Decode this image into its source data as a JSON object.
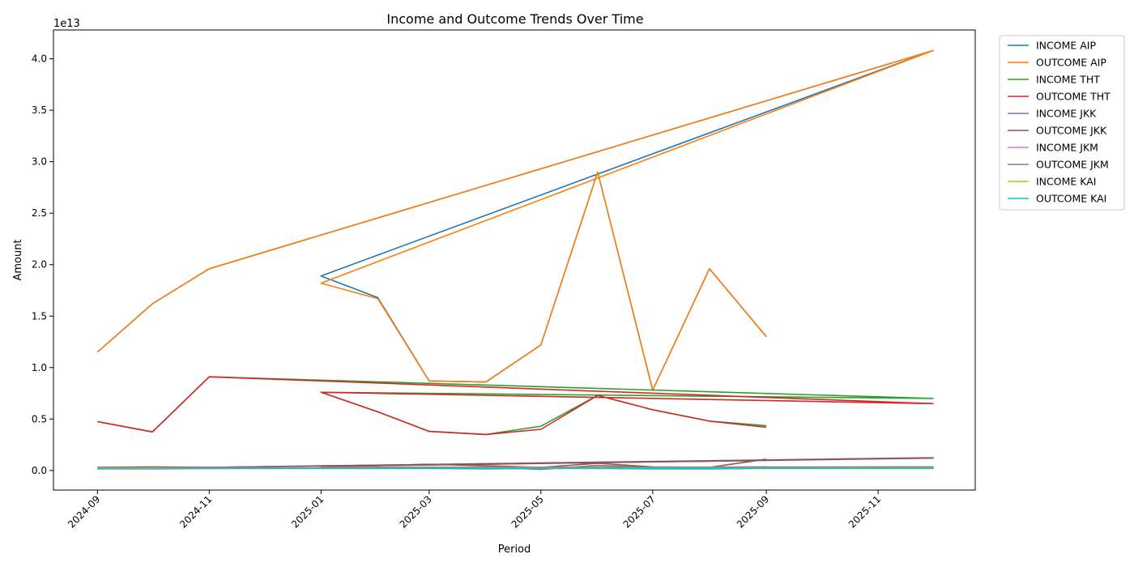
{
  "chart_data": {
    "type": "line",
    "title": "Income and Outcome Trends Over Time",
    "xlabel": "Period",
    "ylabel": "Amount",
    "y_scale_label": "1e13",
    "xlim": [
      "2024-08-08",
      "2025-12-24"
    ],
    "ylim": [
      -0.19,
      4.28
    ],
    "x_ticks": [
      "2024-09",
      "2024-11",
      "2025-01",
      "2025-03",
      "2025-05",
      "2025-07",
      "2025-09",
      "2025-11"
    ],
    "y_ticks": [
      "0.0",
      "0.5",
      "1.0",
      "1.5",
      "2.0",
      "2.5",
      "3.0",
      "3.5",
      "4.0"
    ],
    "legend_position": "outside-right-top",
    "grid": false,
    "series": [
      {
        "name": "INCOME AIP",
        "color": "#1f77b4",
        "points": [
          [
            "2024-09-01",
            1.15
          ],
          [
            "2024-10-01",
            1.62
          ],
          [
            "2024-11-01",
            1.96
          ],
          [
            "2025-12-01",
            4.08
          ],
          [
            "2025-01-01",
            1.89
          ],
          [
            "2025-02-01",
            1.68
          ],
          [
            "2025-03-01",
            0.87
          ],
          [
            "2025-04-01",
            0.86
          ],
          [
            "2025-05-01",
            1.22
          ],
          [
            "2025-06-01",
            2.9
          ],
          [
            "2025-07-01",
            0.78
          ],
          [
            "2025-08-01",
            1.96
          ],
          [
            "2025-09-01",
            1.3
          ]
        ]
      },
      {
        "name": "OUTCOME AIP",
        "color": "#ff7f0e",
        "points": [
          [
            "2024-09-01",
            1.15
          ],
          [
            "2024-10-01",
            1.62
          ],
          [
            "2024-11-01",
            1.96
          ],
          [
            "2025-12-01",
            4.08
          ],
          [
            "2025-01-01",
            1.82
          ],
          [
            "2025-02-01",
            1.67
          ],
          [
            "2025-03-01",
            0.87
          ],
          [
            "2025-04-01",
            0.86
          ],
          [
            "2025-05-01",
            1.22
          ],
          [
            "2025-06-01",
            2.9
          ],
          [
            "2025-07-01",
            0.78
          ],
          [
            "2025-08-01",
            1.96
          ],
          [
            "2025-09-01",
            1.3
          ]
        ]
      },
      {
        "name": "INCOME THT",
        "color": "#2ca02c",
        "points": [
          [
            "2024-09-01",
            0.475
          ],
          [
            "2024-10-01",
            0.375
          ],
          [
            "2024-11-01",
            0.91
          ],
          [
            "2025-12-01",
            0.7
          ],
          [
            "2025-01-01",
            0.76
          ],
          [
            "2025-02-01",
            0.57
          ],
          [
            "2025-03-01",
            0.38
          ],
          [
            "2025-04-01",
            0.35
          ],
          [
            "2025-05-01",
            0.43
          ],
          [
            "2025-06-01",
            0.73
          ],
          [
            "2025-07-01",
            0.59
          ],
          [
            "2025-08-01",
            0.48
          ],
          [
            "2025-09-01",
            0.435
          ]
        ]
      },
      {
        "name": "OUTCOME THT",
        "color": "#d62728",
        "points": [
          [
            "2024-09-01",
            0.475
          ],
          [
            "2024-10-01",
            0.375
          ],
          [
            "2024-11-01",
            0.91
          ],
          [
            "2025-12-01",
            0.65
          ],
          [
            "2025-01-01",
            0.76
          ],
          [
            "2025-02-01",
            0.57
          ],
          [
            "2025-03-01",
            0.38
          ],
          [
            "2025-04-01",
            0.35
          ],
          [
            "2025-05-01",
            0.4
          ],
          [
            "2025-06-01",
            0.73
          ],
          [
            "2025-07-01",
            0.59
          ],
          [
            "2025-08-01",
            0.48
          ],
          [
            "2025-09-01",
            0.42
          ]
        ]
      },
      {
        "name": "INCOME JKK",
        "color": "#9467bd",
        "points": [
          [
            "2024-09-01",
            0.03
          ],
          [
            "2024-10-01",
            0.03
          ],
          [
            "2024-11-01",
            0.03
          ],
          [
            "2025-12-01",
            0.125
          ],
          [
            "2025-01-01",
            0.04
          ],
          [
            "2025-02-01",
            0.05
          ],
          [
            "2025-03-01",
            0.055
          ],
          [
            "2025-04-01",
            0.06
          ],
          [
            "2025-05-01",
            0.07
          ],
          [
            "2025-06-01",
            0.075
          ],
          [
            "2025-07-01",
            0.085
          ],
          [
            "2025-08-01",
            0.09
          ],
          [
            "2025-09-01",
            0.1
          ]
        ]
      },
      {
        "name": "OUTCOME JKK",
        "color": "#8c564b",
        "points": [
          [
            "2024-09-01",
            0.03
          ],
          [
            "2024-10-01",
            0.035
          ],
          [
            "2024-11-01",
            0.03
          ],
          [
            "2025-12-01",
            0.12
          ],
          [
            "2025-01-01",
            0.04
          ],
          [
            "2025-02-01",
            0.045
          ],
          [
            "2025-03-01",
            0.06
          ],
          [
            "2025-04-01",
            0.045
          ],
          [
            "2025-05-01",
            0.03
          ],
          [
            "2025-06-01",
            0.07
          ],
          [
            "2025-07-01",
            0.035
          ],
          [
            "2025-08-01",
            0.03
          ],
          [
            "2025-09-01",
            0.11
          ]
        ]
      },
      {
        "name": "INCOME JKM",
        "color": "#e377c2",
        "points": [
          [
            "2024-09-01",
            0.025
          ],
          [
            "2024-10-01",
            0.025
          ],
          [
            "2024-11-01",
            0.025
          ],
          [
            "2025-12-01",
            0.035
          ],
          [
            "2025-01-01",
            0.03
          ],
          [
            "2025-02-01",
            0.03
          ],
          [
            "2025-03-01",
            0.03
          ],
          [
            "2025-04-01",
            0.03
          ],
          [
            "2025-05-01",
            0.03
          ],
          [
            "2025-06-01",
            0.035
          ],
          [
            "2025-07-01",
            0.03
          ],
          [
            "2025-08-01",
            0.03
          ],
          [
            "2025-09-01",
            0.035
          ]
        ]
      },
      {
        "name": "OUTCOME JKM",
        "color": "#7f7f7f",
        "points": [
          [
            "2024-09-01",
            0.02
          ],
          [
            "2024-10-01",
            0.02
          ],
          [
            "2024-11-01",
            0.02
          ],
          [
            "2025-12-01",
            0.035
          ],
          [
            "2025-01-01",
            0.025
          ],
          [
            "2025-02-01",
            0.03
          ],
          [
            "2025-03-01",
            0.03
          ],
          [
            "2025-04-01",
            0.03
          ],
          [
            "2025-05-01",
            0.01
          ],
          [
            "2025-06-01",
            0.05
          ],
          [
            "2025-07-01",
            0.03
          ],
          [
            "2025-08-01",
            0.03
          ],
          [
            "2025-09-01",
            0.035
          ]
        ]
      },
      {
        "name": "INCOME KAI",
        "color": "#bcbd22",
        "points": [
          [
            "2024-09-01",
            0.02
          ],
          [
            "2024-10-01",
            0.02
          ],
          [
            "2024-11-01",
            0.02
          ],
          [
            "2025-12-01",
            0.025
          ],
          [
            "2025-01-01",
            0.02
          ],
          [
            "2025-02-01",
            0.02
          ],
          [
            "2025-03-01",
            0.02
          ],
          [
            "2025-04-01",
            0.02
          ],
          [
            "2025-05-01",
            0.02
          ],
          [
            "2025-06-01",
            0.025
          ],
          [
            "2025-07-01",
            0.02
          ],
          [
            "2025-08-01",
            0.02
          ],
          [
            "2025-09-01",
            0.025
          ]
        ]
      },
      {
        "name": "OUTCOME KAI",
        "color": "#17becf",
        "points": [
          [
            "2024-09-01",
            0.015
          ],
          [
            "2024-10-01",
            0.015
          ],
          [
            "2024-11-01",
            0.02
          ],
          [
            "2025-12-01",
            0.02
          ],
          [
            "2025-01-01",
            0.02
          ],
          [
            "2025-02-01",
            0.02
          ],
          [
            "2025-03-01",
            0.02
          ],
          [
            "2025-04-01",
            0.015
          ],
          [
            "2025-05-01",
            0.02
          ],
          [
            "2025-06-01",
            0.02
          ],
          [
            "2025-07-01",
            0.015
          ],
          [
            "2025-08-01",
            0.015
          ],
          [
            "2025-09-01",
            0.02
          ]
        ]
      }
    ]
  }
}
